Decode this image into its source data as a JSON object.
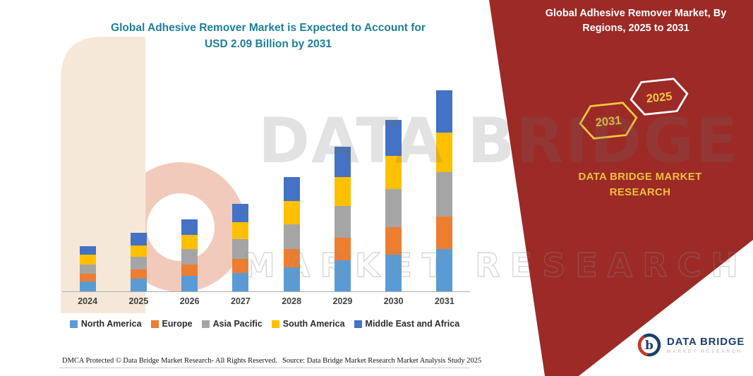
{
  "title": {
    "line1": "Global Adhesive Remover Market is Expected to Account for",
    "line2": "USD 2.09 Billion by 2031"
  },
  "panel": {
    "title": "Global Adhesive Remover Market, By Regions, 2025 to 2031",
    "hex_back_label": "2031",
    "hex_front_label": "2025",
    "brand_line1": "DATA BRIDGE MARKET",
    "brand_line2": "RESEARCH"
  },
  "watermark": {
    "line1": "DATA BRIDGE",
    "line2": "MARKET RESEARCH"
  },
  "footer": {
    "dmca": "DMCA Protected © Data Bridge Market Research-  All Rights Reserved.",
    "source": "Source: Data Bridge Market Research  Market Analysis Study 2025"
  },
  "logo": {
    "icon": "data-bridge-circle-b-icon",
    "name": "DATA BRIDGE",
    "sub": "MARKET RESEARCH"
  },
  "colors": {
    "title_teal": "#1E7F96",
    "panel_red": "#9C2A26",
    "gold": "#EFBF3C",
    "logo_navy": "#1C3E6E",
    "logo_red": "#C03A2B",
    "axis_gray": "#ABABAB"
  },
  "chart_data": {
    "type": "bar",
    "stacked": true,
    "title": "Global Adhesive Remover Market is Expected to Account for USD 2.09 Billion by 2031",
    "xlabel": "",
    "ylabel": "",
    "unit": "USD Billion",
    "ylim": [
      0,
      2.2
    ],
    "grid": false,
    "legend_position": "bottom",
    "categories": [
      "2024",
      "2025",
      "2026",
      "2027",
      "2028",
      "2029",
      "2030",
      "2031"
    ],
    "totals": [
      0.47,
      0.61,
      0.75,
      0.91,
      1.19,
      1.5,
      1.78,
      2.09
    ],
    "series": [
      {
        "name": "North America",
        "color": "#5B9BD5",
        "values": [
          0.1,
          0.13,
          0.16,
          0.19,
          0.25,
          0.32,
          0.38,
          0.44
        ]
      },
      {
        "name": "Europe",
        "color": "#ED7D31",
        "values": [
          0.08,
          0.1,
          0.12,
          0.15,
          0.19,
          0.24,
          0.29,
          0.34
        ]
      },
      {
        "name": "Asia Pacific",
        "color": "#A5A5A5",
        "values": [
          0.1,
          0.13,
          0.16,
          0.2,
          0.26,
          0.33,
          0.39,
          0.46
        ]
      },
      {
        "name": "South America",
        "color": "#FFC000",
        "values": [
          0.1,
          0.12,
          0.15,
          0.18,
          0.24,
          0.3,
          0.35,
          0.41
        ]
      },
      {
        "name": "Middle East and Africa",
        "color": "#4472C4",
        "values": [
          0.09,
          0.13,
          0.16,
          0.19,
          0.25,
          0.31,
          0.37,
          0.44
        ]
      }
    ]
  }
}
